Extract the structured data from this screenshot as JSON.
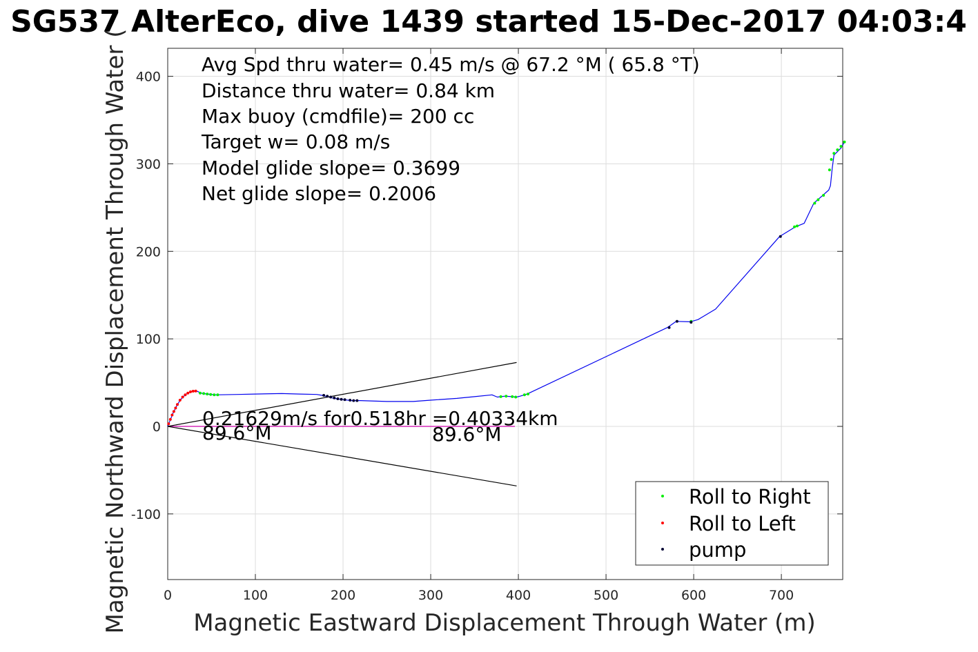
{
  "chart_data": {
    "type": "line",
    "title": "SG537 AlterEco, dive 1439 started 15-Dec-2017 04:03:4",
    "xlabel": "Magnetic Eastward Displacement Through Water (m)",
    "ylabel": "Magnetic Northward Displacement Through Water (",
    "xlim": [
      0,
      770
    ],
    "ylim": [
      -175,
      432
    ],
    "xticks": [
      0,
      100,
      200,
      300,
      400,
      500,
      600,
      700
    ],
    "yticks": [
      -100,
      0,
      100,
      200,
      300,
      400
    ],
    "xtick_labels": [
      "0",
      "100",
      "200",
      "300",
      "400",
      "500",
      "600",
      "700"
    ],
    "ytick_labels": [
      "-100",
      "0",
      "100",
      "200",
      "300",
      "400"
    ],
    "grid": true,
    "annotations": [
      "Avg Spd thru water=  0.45 m/s @  67.2 °M ( 65.8 °T)",
      "Distance thru water=  0.84 km",
      "Max buoy (cmdfile)= 200 cc",
      "Target w= 0.08 m/s",
      "Model glide slope= 0.3699",
      "Net glide slope= 0.2006"
    ],
    "plot_texts": {
      "current_label": "0.21629m/s for0.518hr =0.40334km",
      "heading_left": "89.6°M",
      "heading_right": "89.6°M"
    },
    "legend": {
      "placement": "bottom-right",
      "entries": [
        {
          "label": "Roll to Right",
          "color": "#00ee00"
        },
        {
          "label": "Roll to Left",
          "color": "#ff0000"
        },
        {
          "label": "pump",
          "color": "#000033"
        }
      ]
    },
    "series": [
      {
        "color": "#0000ee",
        "x": [
          0,
          2,
          4,
          6,
          8,
          10,
          13,
          16,
          19,
          22,
          25,
          28,
          31,
          34,
          38,
          45,
          55,
          80,
          100,
          130,
          150,
          170,
          176,
          182,
          190,
          200,
          210,
          220,
          250,
          280,
          300,
          330,
          350,
          370,
          376,
          380,
          385,
          392,
          398,
          402,
          410,
          570,
          580,
          596,
          605,
          625,
          698,
          716,
          726,
          737,
          745,
          754,
          756,
          758,
          760,
          768,
          772
        ],
        "y": [
          0,
          5,
          10,
          15,
          19,
          23,
          28,
          32,
          35,
          37.5,
          39,
          40,
          40.5,
          40,
          38,
          37,
          36,
          36.5,
          37,
          37.5,
          37,
          36.5,
          35.5,
          34,
          32,
          30.5,
          29.5,
          29.5,
          28.5,
          28.5,
          30,
          32,
          34,
          36,
          33.5,
          34,
          34.5,
          34,
          33.5,
          34.5,
          37,
          113,
          120,
          119.5,
          122,
          134,
          217,
          228,
          232,
          255,
          262,
          270,
          275,
          295,
          310,
          318,
          325
        ]
      },
      {
        "color": "#cc00aa",
        "x": [
          0,
          396
        ],
        "y": [
          0,
          0
        ]
      },
      {
        "color": "#000000",
        "x": [
          0,
          398
        ],
        "y": [
          0,
          73
        ]
      },
      {
        "color": "#000000",
        "x": [
          0,
          398
        ],
        "y": [
          0,
          -68
        ]
      }
    ],
    "markers": {
      "roll_right": {
        "color": "#00ee00",
        "x": [
          37,
          41,
          45,
          49,
          53,
          57,
          380,
          386,
          393,
          397,
          407,
          411,
          597,
          715,
          718,
          738,
          742,
          748,
          755,
          757,
          760,
          764,
          768,
          772
        ],
        "y": [
          38,
          37.5,
          37,
          36.5,
          36,
          36,
          34,
          34.5,
          34,
          33.5,
          36,
          37,
          120,
          228,
          229,
          255,
          259,
          264,
          293,
          305,
          312,
          316,
          320,
          325
        ]
      },
      "roll_left": {
        "color": "#ff0000",
        "x": [
          1,
          3,
          5,
          7,
          9,
          11,
          14,
          17,
          20,
          23,
          26,
          29,
          32
        ],
        "y": [
          3,
          8,
          13,
          17,
          21,
          25,
          30,
          33.5,
          36,
          38,
          39.5,
          40.2,
          40.4
        ]
      },
      "pump": {
        "color": "#000033",
        "x": [
          178,
          182,
          186,
          190,
          194,
          198,
          202,
          208,
          212,
          216,
          572,
          581,
          597,
          699
        ],
        "y": [
          35.5,
          34.5,
          33.5,
          32.5,
          31.5,
          31,
          30.5,
          30,
          29.5,
          29.5,
          113,
          120,
          119,
          217
        ]
      }
    }
  }
}
